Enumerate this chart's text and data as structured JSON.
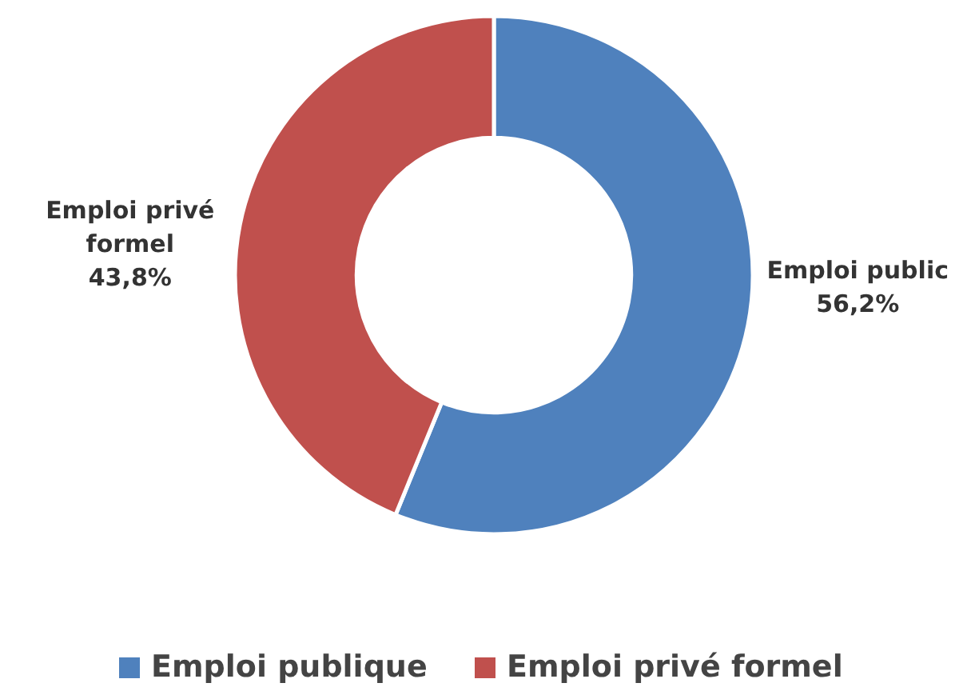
{
  "chart_data": {
    "type": "donut",
    "categories": [
      "Emploi publique",
      "Emploi privé formel"
    ],
    "values": [
      56.2,
      43.8
    ],
    "colors": [
      "#4f81bd",
      "#c0504d"
    ],
    "value_labels": [
      "Emploi public\n56,2%",
      "Emploi privé\nformel\n43,8%"
    ],
    "legend": "bottom"
  }
}
